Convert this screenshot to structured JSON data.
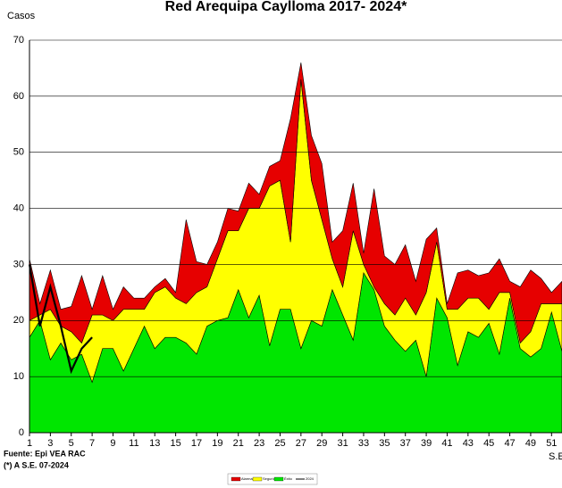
{
  "chart_data": {
    "type": "stacked_area",
    "title": "Red Arequipa Caylloma 2017- 2024*",
    "y_label": "Casos",
    "x_label": "S.E.",
    "source": "Fuente: Epi VEA RAC",
    "note": "(*) A S.E. 07-2024",
    "x": [
      1,
      2,
      3,
      4,
      5,
      6,
      7,
      8,
      9,
      10,
      11,
      12,
      13,
      14,
      15,
      16,
      17,
      18,
      19,
      20,
      21,
      22,
      23,
      24,
      25,
      26,
      27,
      28,
      29,
      30,
      31,
      32,
      33,
      34,
      35,
      36,
      37,
      38,
      39,
      40,
      41,
      42,
      43,
      44,
      45,
      46,
      47,
      48,
      49,
      50,
      51,
      52
    ],
    "xlim": [
      1,
      52
    ],
    "xticks": [
      1,
      3,
      5,
      7,
      9,
      11,
      13,
      15,
      17,
      19,
      21,
      23,
      25,
      27,
      29,
      31,
      33,
      35,
      37,
      39,
      41,
      43,
      45,
      47,
      49,
      51
    ],
    "ylim": [
      0,
      70
    ],
    "yticks": [
      0,
      10,
      20,
      30,
      40,
      50,
      60,
      70
    ],
    "grid": true,
    "series": [
      {
        "name": "Éxito",
        "color": "#00e600",
        "values": [
          17,
          20,
          13,
          16,
          13,
          14,
          9,
          15,
          15,
          11,
          15,
          19,
          15,
          17,
          17,
          16,
          14,
          19,
          20,
          20.5,
          25.5,
          20.5,
          24.5,
          15.5,
          22,
          22,
          15,
          20,
          19,
          25.5,
          21,
          16.5,
          28.5,
          25.5,
          19,
          16.5,
          14.5,
          16.5,
          10,
          24,
          20.5,
          12,
          18,
          17,
          19.5,
          14,
          24,
          15,
          13.5,
          15,
          21.5,
          14.5
        ]
      },
      {
        "name": "Seguridad",
        "color": "#ffff00",
        "values": [
          3,
          1,
          9,
          3,
          5,
          2,
          12,
          6,
          5,
          11,
          7,
          3,
          10,
          9,
          7,
          7,
          11,
          7,
          11,
          15.5,
          10.5,
          19.5,
          15.5,
          28.5,
          23,
          12,
          48,
          25,
          19,
          5.5,
          5,
          19.5,
          1.5,
          0.5,
          4,
          4.5,
          9.5,
          4.5,
          15,
          10,
          1.5,
          10,
          6,
          7,
          2.5,
          11,
          1,
          1,
          4.5,
          8,
          1.5,
          8.5
        ]
      },
      {
        "name": "Alarma",
        "color": "#e60000",
        "values": [
          11,
          2,
          7,
          3,
          4.5,
          12,
          1,
          7,
          2,
          4,
          2,
          2,
          1,
          1.5,
          1,
          15,
          5.5,
          4,
          3,
          4,
          3.5,
          4.5,
          2.5,
          3.5,
          3.5,
          22,
          3,
          8,
          10,
          3,
          10,
          8.5,
          2,
          17.5,
          8.5,
          9,
          9.5,
          6,
          9.5,
          2.5,
          1,
          6.5,
          5,
          4,
          6.5,
          6,
          2,
          10,
          11,
          4.5,
          2,
          4
        ]
      }
    ],
    "line": {
      "name": "2024",
      "color": "#000000",
      "values": [
        30,
        19,
        26,
        19,
        11,
        15,
        17
      ]
    }
  }
}
